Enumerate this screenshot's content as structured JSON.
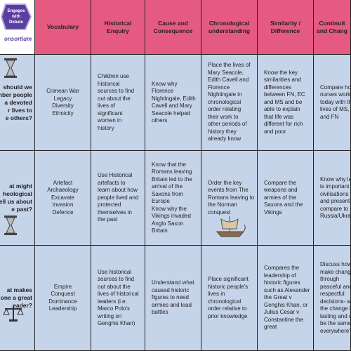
{
  "logo": {
    "badge": [
      "Engages",
      "with",
      "Debate"
    ],
    "brand": "onsortium"
  },
  "table": {
    "header": [
      [
        "Vocabulary"
      ],
      [
        "Historical",
        "Enquiry"
      ],
      [
        "Cause and",
        "Consequence"
      ],
      [
        "Chronological",
        "understanding"
      ],
      [
        "Similarity /",
        "Difference"
      ],
      [
        "Continuit",
        "and Chang"
      ]
    ],
    "rows": [
      [
        [
          "should we",
          "mber people",
          "a devoted",
          "r lives to",
          "e others?"
        ],
        [
          "Crimean War",
          "Legacy",
          "Diversity",
          "Ethnicity"
        ],
        [
          "Children use",
          "historical",
          "sources to  find",
          "out about the",
          "lives of",
          "significant",
          "women in",
          "history"
        ],
        [
          "Know why",
          "Florence",
          "Nightingale, Edith",
          "Cavell  and Mary",
          "Seacole helped",
          "others"
        ],
        [
          "Place the lives of",
          "Mary Seacole,",
          "Edith Cavell  and",
          "Florence",
          "Nightingale  in",
          "chronological",
          "order relating",
          "their work to",
          "other periods of",
          "history they",
          "already know"
        ],
        [
          "Know the key",
          "similarities and",
          "differences",
          "between FN, EC",
          "and MS and be",
          "able to explain",
          "that life was",
          "different for rich",
          "and poor"
        ],
        [
          "Compare how",
          "nurses work",
          "today with th",
          "lives of MS, E",
          "and FN"
        ]
      ],
      [
        [
          "at might",
          "heological",
          "ell us about",
          "e past?"
        ],
        [
          "Artefact",
          "Archaeology",
          "Excavate",
          "Invasion",
          "Defence"
        ],
        [
          "Use Historical",
          "artefacts to",
          "learn about how",
          "people lived and",
          "protected",
          "themselves in",
          "the past"
        ],
        [
          "Know that the",
          "Romans leaving",
          "Britain led to the",
          "arrival of the",
          "Saxons from",
          "Europe",
          "Know why the",
          "Vikings invaded",
          "Anglo Saxon",
          "Britain"
        ],
        [
          "Order the key",
          "events from The",
          "Romans leaving to",
          "the Norman",
          "conquest"
        ],
        [
          "Compare the",
          "weapons and",
          "armies of the",
          "Saxons and the",
          "Vikings"
        ],
        [
          "Know why lar",
          "is important t",
          "civilisations p",
          "and present",
          "compare to",
          "Russia/Ukrain"
        ]
      ],
      [
        [
          "at makes",
          "one a great",
          "eader?"
        ],
        [
          "Empire",
          "Conquest",
          "Dominance",
          "Leadership"
        ],
        [
          "Use historical",
          "sources to  find",
          "out about the",
          "lives of historical",
          "leaders (i.e.",
          "Marco Polo's",
          "writing on",
          "Genghis Khan)"
        ],
        [
          "Understand what",
          "caused historic",
          "figures to need",
          "armies and lead",
          "battles"
        ],
        [
          "Place significant",
          "historic people's",
          "lives in",
          "chronological",
          "order relative to",
          "prior knowledge"
        ],
        [
          "Compares the",
          "leadership of",
          "historic figures",
          "such as Alexander",
          "the Great v",
          "Genghis Khan, or",
          "Julius Cesar v",
          "Constantine the",
          "great"
        ],
        [
          "Discuss how t",
          "make change",
          "through",
          "peaceful and",
          "respectful",
          "decisions- wil",
          "the change b",
          "lasting and w",
          "be the same",
          "everywhere?"
        ]
      ]
    ]
  }
}
